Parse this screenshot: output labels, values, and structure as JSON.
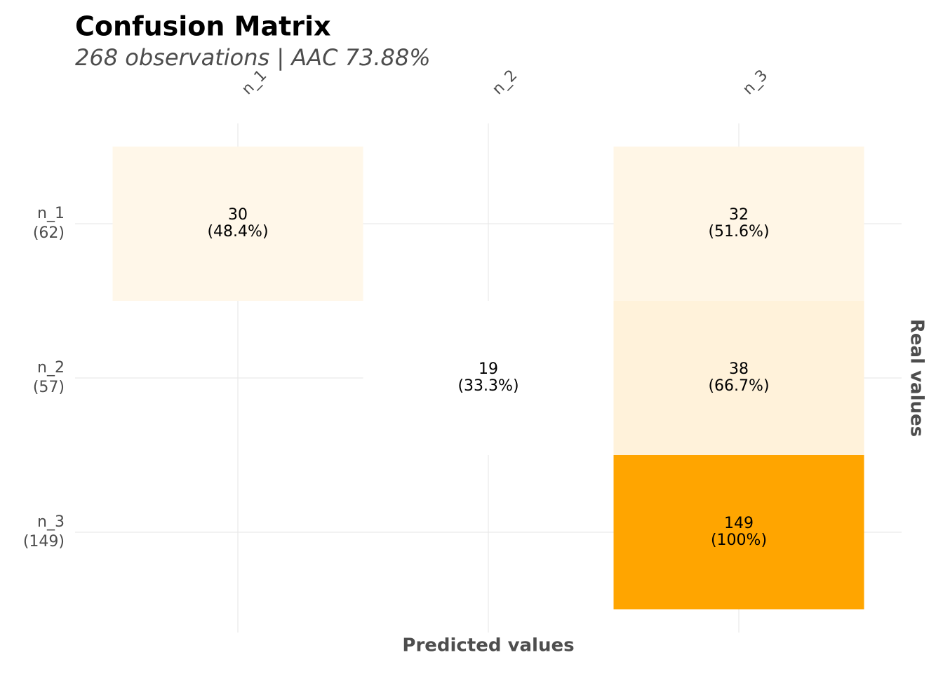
{
  "chart_data": {
    "type": "heatmap",
    "title": "Confusion Matrix",
    "subtitle": "268 observations | AAC 73.88%",
    "x_label": "Predicted values",
    "y_label": "Real values",
    "x_categories": [
      "n_1",
      "n_2",
      "n_3"
    ],
    "y_categories": [
      "n_1",
      "n_2",
      "n_3"
    ],
    "row_totals": {
      "values": [
        62,
        57,
        149
      ],
      "value_labels": [
        "(62)",
        "(57)",
        "(149)"
      ]
    },
    "values": [
      [
        30,
        null,
        32
      ],
      [
        null,
        19,
        38
      ],
      [
        null,
        null,
        149
      ]
    ],
    "percent": {
      "values": [
        [
          48.4,
          null,
          51.6
        ],
        [
          null,
          33.3,
          66.7
        ],
        [
          null,
          null,
          100
        ]
      ],
      "value_labels": [
        [
          "(48.4%)",
          null,
          "(51.6%)"
        ],
        [
          null,
          "(33.3%)",
          "(66.7%)"
        ],
        [
          null,
          null,
          "(100%)"
        ]
      ]
    },
    "color_low": "#ffffff",
    "color_high": "#ffa500",
    "grid": true
  }
}
